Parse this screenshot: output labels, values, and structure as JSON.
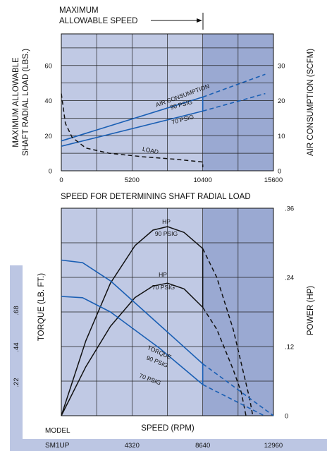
{
  "colors": {
    "panel_light": "#c0c9e4",
    "panel_dark": "#9aa9d2",
    "axis_strip": "#bcc6e3",
    "series_blue": "#1a5fb4",
    "series_black": "#111111"
  },
  "chart_data": [
    {
      "type": "line",
      "annotation": "MAXIMUM ALLOWABLE SPEED",
      "xlabel": "SPEED FOR DETERMINING SHAFT RADIAL LOAD",
      "ylabel": "MAXIMUM ALLOWABLE SHAFT RADIAL LOAD (LBS.)",
      "y2label": "AIR CONSUMPTION (SCFM)",
      "xlim": [
        0,
        15600
      ],
      "ylim": [
        0,
        78
      ],
      "y2lim": [
        0,
        39
      ],
      "x_ticks": [
        "0",
        "5200",
        "10400",
        "15600"
      ],
      "y_ticks": [
        "0",
        "20",
        "40",
        "60"
      ],
      "y2_ticks": [
        "0",
        "10",
        "20",
        "30"
      ],
      "max_speed_x": 10400,
      "series": [
        {
          "name": "AIR CONSUMPTION 90 PSIG",
          "axis": "right",
          "x": [
            0,
            10400,
            15000
          ],
          "y": [
            8.5,
            21,
            27.5
          ],
          "dashed_from": 10400
        },
        {
          "name": "70 PSIG",
          "axis": "right",
          "x": [
            0,
            10400,
            15000
          ],
          "y": [
            7,
            17,
            22
          ],
          "dashed_from": 10400
        },
        {
          "name": "LOAD",
          "axis": "left",
          "x": [
            0,
            300,
            800,
            1800,
            3500,
            6000,
            8500,
            10400,
            10400
          ],
          "y": [
            44,
            27,
            19,
            13,
            10,
            8,
            6.5,
            5,
            2
          ],
          "dashed_from": 0
        }
      ]
    },
    {
      "type": "line",
      "xlabel": "SPEED (RPM)",
      "ylabel": "TORQUE (LB. FT.)",
      "y2label": "POWER (HP)",
      "xlim": [
        0,
        12960
      ],
      "y2lim": [
        0,
        0.36
      ],
      "x_ticks": [
        "4320",
        "8640",
        "12960"
      ],
      "y2_ticks": [
        ".36",
        ".24",
        ".12",
        "0"
      ],
      "max_speed_x": 8640,
      "model_label": "MODEL",
      "model": "SM1UP",
      "torque_axis_ticks": [
        ".22",
        ".44",
        ".68"
      ],
      "series": [
        {
          "name": "HP 90 PSIG",
          "axis": "right",
          "x": [
            0,
            1500,
            3000,
            4500,
            5600,
            6480,
            7500,
            8640,
            9500,
            10500,
            11500,
            11700
          ],
          "y": [
            0,
            0.13,
            0.23,
            0.295,
            0.322,
            0.328,
            0.318,
            0.29,
            0.24,
            0.15,
            0.03,
            0
          ],
          "dashed_from": 8640
        },
        {
          "name": "HP 70 PSIG",
          "axis": "right",
          "x": [
            0,
            1500,
            3000,
            4500,
            5600,
            6480,
            7500,
            8640,
            9500,
            10500,
            11000,
            11280
          ],
          "y": [
            0,
            0.085,
            0.155,
            0.205,
            0.225,
            0.23,
            0.22,
            0.188,
            0.15,
            0.08,
            0.04,
            0
          ],
          "dashed_from": 8640
        },
        {
          "name": "TORQUE 90 PSIG",
          "axis": "torque",
          "x": [
            0,
            1300,
            3000,
            6000,
            8640,
            12960
          ],
          "y": [
            0.6,
            0.59,
            0.52,
            0.35,
            0.2,
            0
          ],
          "dashed_from": 8640
        },
        {
          "name": "70 PSIG",
          "axis": "torque",
          "x": [
            0,
            1300,
            3000,
            6000,
            8640,
            12400
          ],
          "y": [
            0.46,
            0.455,
            0.4,
            0.26,
            0.12,
            0
          ],
          "dashed_from": 8640
        }
      ]
    }
  ]
}
